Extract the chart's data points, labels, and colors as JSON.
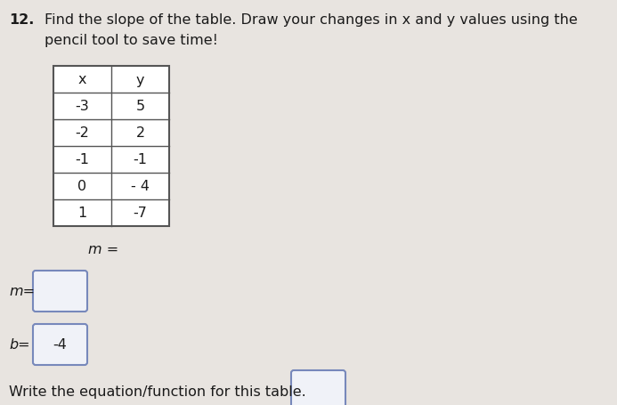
{
  "problem_number": "12.",
  "instruction_line1": "Find the slope of the table. Draw your changes in x and y values using the",
  "instruction_line2": "pencil tool to save time!",
  "table_headers": [
    "x",
    "y"
  ],
  "table_data": [
    [
      "-3",
      "5"
    ],
    [
      "-2",
      "2"
    ],
    [
      "-1",
      "-1"
    ],
    [
      "0",
      "- 4"
    ],
    [
      "1",
      "-7"
    ]
  ],
  "label_m_eq": "m =",
  "label_m": "m=",
  "label_b": "b=",
  "b_value": "-4",
  "write_eq_text": "Write the equation/function for this table.",
  "bg_color": "#e8e4e0",
  "text_color": "#1a1a1a",
  "table_bg": "#ffffff",
  "box_bg": "#f0f2f8",
  "box_border": "#7788bb",
  "table_border": "#555555",
  "font_size_instruction": 11.5,
  "font_size_table": 11.5,
  "font_size_labels": 11.5,
  "fig_width": 6.93,
  "fig_height": 4.56,
  "dpi": 100
}
